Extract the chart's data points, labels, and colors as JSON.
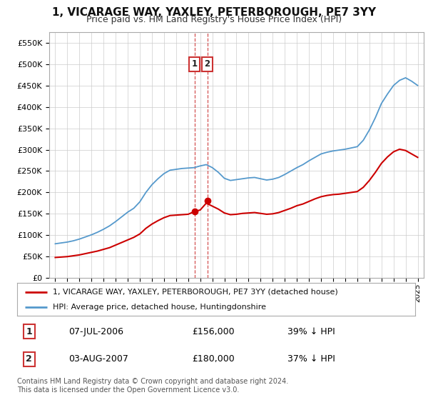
{
  "title": "1, VICARAGE WAY, YAXLEY, PETERBOROUGH, PE7 3YY",
  "subtitle": "Price paid vs. HM Land Registry's House Price Index (HPI)",
  "legend_line1": "1, VICARAGE WAY, YAXLEY, PETERBOROUGH, PE7 3YY (detached house)",
  "legend_line2": "HPI: Average price, detached house, Huntingdonshire",
  "sale1_date": "07-JUL-2006",
  "sale1_price": 156000,
  "sale1_label": "1",
  "sale1_note": "39% ↓ HPI",
  "sale2_date": "03-AUG-2007",
  "sale2_price": 180000,
  "sale2_label": "2",
  "sale2_note": "37% ↓ HPI",
  "footer": "Contains HM Land Registry data © Crown copyright and database right 2024.\nThis data is licensed under the Open Government Licence v3.0.",
  "ylim_min": 0,
  "ylim_max": 575000,
  "xlim_min": 1994.5,
  "xlim_max": 2025.5,
  "red_color": "#cc0000",
  "blue_color": "#5599cc",
  "vline_color": "#cc3333",
  "grid_color": "#cccccc",
  "title_fontsize": 11,
  "subtitle_fontsize": 9,
  "tick_fontsize": 7.5,
  "ytick_fontsize": 8,
  "legend_fontsize": 8,
  "table_fontsize": 9,
  "footer_fontsize": 7,
  "sale1_x": 2006.52,
  "sale2_x": 2007.59,
  "hpi_years": [
    1995.0,
    1995.5,
    1996.0,
    1996.5,
    1997.0,
    1997.5,
    1998.0,
    1998.5,
    1999.0,
    1999.5,
    2000.0,
    2000.5,
    2001.0,
    2001.5,
    2002.0,
    2002.5,
    2003.0,
    2003.5,
    2004.0,
    2004.5,
    2005.0,
    2005.5,
    2006.0,
    2006.5,
    2007.0,
    2007.5,
    2008.0,
    2008.5,
    2009.0,
    2009.5,
    2010.0,
    2010.5,
    2011.0,
    2011.5,
    2012.0,
    2012.5,
    2013.0,
    2013.5,
    2014.0,
    2014.5,
    2015.0,
    2015.5,
    2016.0,
    2016.5,
    2017.0,
    2017.5,
    2018.0,
    2018.5,
    2019.0,
    2019.5,
    2020.0,
    2020.5,
    2021.0,
    2021.5,
    2022.0,
    2022.5,
    2023.0,
    2023.5,
    2024.0,
    2024.5,
    2025.0
  ],
  "hpi_values": [
    80000,
    82000,
    84000,
    87000,
    91000,
    96000,
    101000,
    107000,
    114000,
    122000,
    132000,
    143000,
    154000,
    163000,
    178000,
    200000,
    218000,
    232000,
    244000,
    252000,
    254000,
    256000,
    257000,
    258000,
    262000,
    265000,
    258000,
    247000,
    233000,
    228000,
    230000,
    232000,
    234000,
    235000,
    232000,
    229000,
    231000,
    235000,
    242000,
    250000,
    258000,
    265000,
    274000,
    282000,
    290000,
    294000,
    297000,
    299000,
    301000,
    304000,
    307000,
    322000,
    346000,
    375000,
    408000,
    430000,
    450000,
    462000,
    468000,
    460000,
    450000
  ],
  "red_values": [
    48000,
    49000,
    50000,
    52000,
    54000,
    57000,
    60000,
    63000,
    67000,
    71000,
    77000,
    83000,
    89000,
    95000,
    103000,
    116000,
    126000,
    134000,
    141000,
    146000,
    147000,
    148000,
    149000,
    155000,
    159000,
    175000,
    168000,
    161000,
    152000,
    148000,
    149000,
    151000,
    152000,
    153000,
    151000,
    149000,
    150000,
    153000,
    158000,
    163000,
    169000,
    173000,
    179000,
    185000,
    190000,
    193000,
    195000,
    196000,
    198000,
    200000,
    202000,
    212000,
    228000,
    247000,
    268000,
    283000,
    295000,
    301000,
    298000,
    290000,
    282000
  ]
}
